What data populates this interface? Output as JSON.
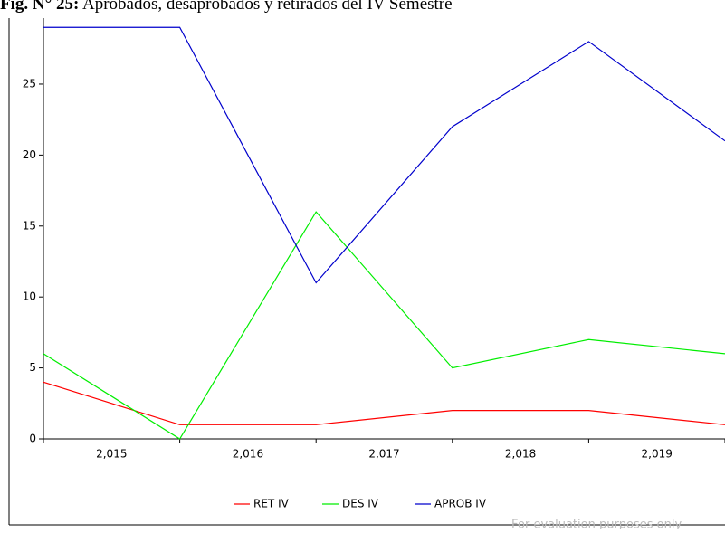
{
  "chart_data": {
    "type": "line",
    "title_prefix": "Fig. N° 25:",
    "title": "Aprobados, desaprobados y retirados del IV Semestre",
    "x": [
      2014.5,
      2015.5,
      2016.5,
      2017.5,
      2018.5,
      2019.5
    ],
    "xlim": [
      2014.5,
      2019.5
    ],
    "xticks": [
      {
        "value": 2015,
        "label": "2,015"
      },
      {
        "value": 2016,
        "label": "2,016"
      },
      {
        "value": 2017,
        "label": "2,017"
      },
      {
        "value": 2018,
        "label": "2,018"
      },
      {
        "value": 2019,
        "label": "2,019"
      }
    ],
    "ylim": [
      0,
      29.5
    ],
    "yticks": [
      0,
      5,
      10,
      15,
      20,
      25
    ],
    "series": [
      {
        "name": "RET IV",
        "color": "#ff0000",
        "values": [
          4,
          1,
          1,
          2,
          2,
          1
        ]
      },
      {
        "name": "DES IV",
        "color": "#00ee00",
        "values": [
          6,
          0,
          16,
          5,
          7,
          6
        ]
      },
      {
        "name": "APROB IV",
        "color": "#0000cc",
        "values": [
          29,
          29,
          11,
          22,
          28,
          21
        ]
      }
    ],
    "watermark": "For evaluation purposes only"
  }
}
